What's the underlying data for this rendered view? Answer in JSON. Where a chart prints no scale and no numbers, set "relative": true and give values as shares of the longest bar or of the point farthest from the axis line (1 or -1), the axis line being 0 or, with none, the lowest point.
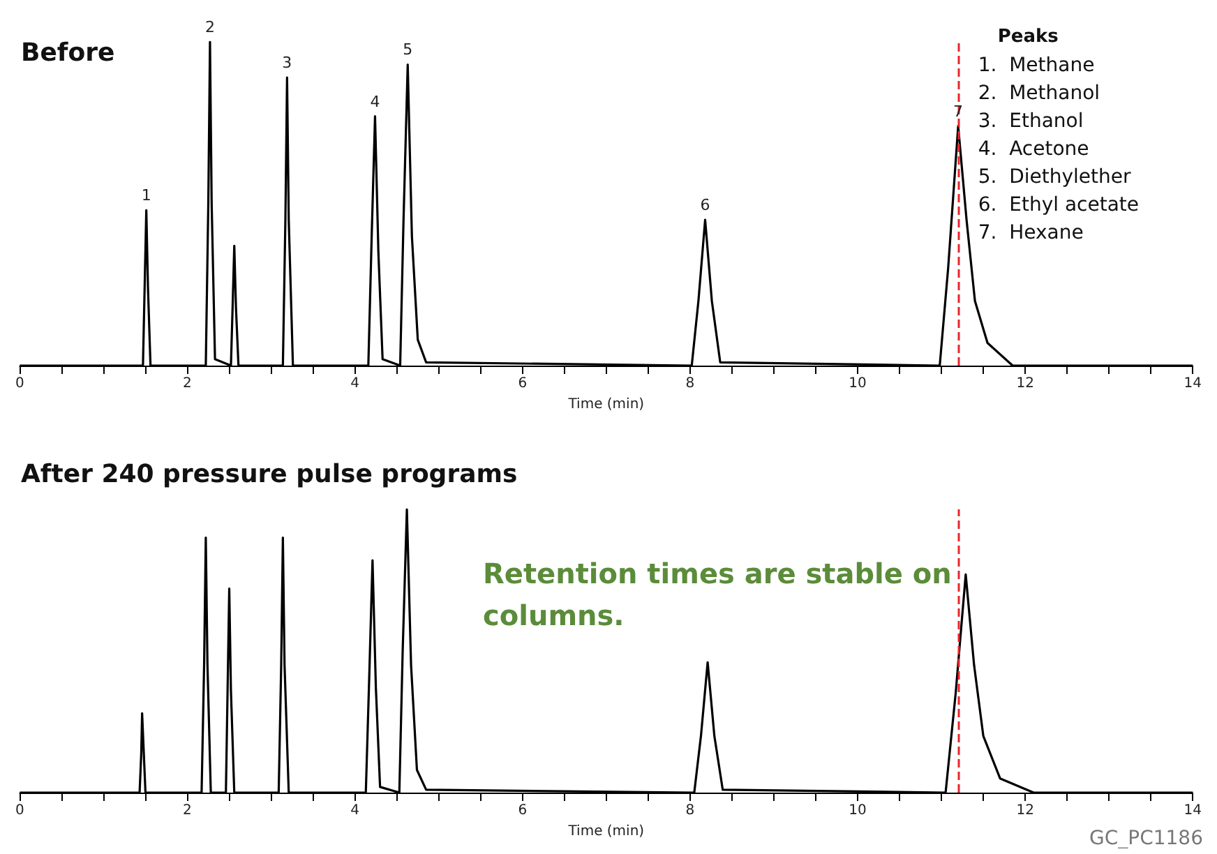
{
  "chart_data": [
    {
      "type": "line",
      "title": "Before",
      "xlabel": "Time (min)",
      "relative": true,
      "marker": "none",
      "tick_labels": "x",
      "xlim": [
        0,
        14
      ],
      "xticks": [
        0,
        {
          "value": 0.5,
          "label": null
        },
        {
          "value": 1,
          "label": null
        },
        {
          "value": 1.5,
          "label": null
        },
        2,
        {
          "value": 2.5,
          "label": null
        },
        {
          "value": 3,
          "label": null
        },
        {
          "value": 3.5,
          "label": null
        },
        4,
        {
          "value": 4.5,
          "label": null
        },
        {
          "value": 5,
          "label": null
        },
        {
          "value": 5.5,
          "label": null
        },
        6,
        {
          "value": 6.5,
          "label": null
        },
        {
          "value": 7,
          "label": null
        },
        {
          "value": 7.5,
          "label": null
        },
        8,
        {
          "value": 8.5,
          "label": null
        },
        {
          "value": 9,
          "label": null
        },
        {
          "value": 9.5,
          "label": null
        },
        10,
        {
          "value": 10.5,
          "label": null
        },
        {
          "value": 11,
          "label": null
        },
        {
          "value": 11.5,
          "label": null
        },
        12,
        {
          "value": 12.5,
          "label": null
        },
        {
          "value": 13,
          "label": null
        },
        {
          "value": 13.5,
          "label": null
        },
        14
      ],
      "x": [
        0,
        1.47,
        1.49,
        1.51,
        1.53,
        1.56,
        2.22,
        2.25,
        2.27,
        2.29,
        2.33,
        2.52,
        2.54,
        2.56,
        2.58,
        2.61,
        3.14,
        3.17,
        3.19,
        3.21,
        3.26,
        4.16,
        4.2,
        4.24,
        4.28,
        4.33,
        4.54,
        4.58,
        4.63,
        4.68,
        4.75,
        4.85,
        8.02,
        8.1,
        8.18,
        8.26,
        8.36,
        10.98,
        11.08,
        11.2,
        11.3,
        11.4,
        11.55,
        11.85,
        14
      ],
      "series": [
        {
          "color": "#000000",
          "values": [
            0,
            0,
            0.24,
            0.48,
            0.24,
            0,
            0,
            0.5,
            1.0,
            0.5,
            0.02,
            0,
            0.18,
            0.37,
            0.18,
            0,
            0,
            0.45,
            0.89,
            0.45,
            0,
            0,
            0.4,
            0.77,
            0.35,
            0.02,
            0,
            0.45,
            0.93,
            0.4,
            0.08,
            0.01,
            0,
            0.2,
            0.45,
            0.2,
            0.01,
            0,
            0.3,
            0.74,
            0.45,
            0.2,
            0.07,
            0,
            0
          ]
        }
      ],
      "ref_lines": [
        {
          "axis": "x",
          "value": 11.2,
          "label": null,
          "color": "#e8262a",
          "line_style": "dashed"
        }
      ],
      "annotations": [
        {
          "text": "1",
          "x": 1.51,
          "y": 0.48
        },
        {
          "text": "2",
          "x": 2.27,
          "y": 1.0
        },
        {
          "text": "3",
          "x": 3.19,
          "y": 0.89
        },
        {
          "text": "4",
          "x": 4.24,
          "y": 0.77
        },
        {
          "text": "5",
          "x": 4.63,
          "y": 0.93
        },
        {
          "text": "6",
          "x": 8.18,
          "y": 0.45
        },
        {
          "text": "7",
          "x": 11.2,
          "y": 0.74
        },
        "Peaks",
        "1.  Methane",
        "2.  Methanol",
        "3.  Ethanol",
        "4.  Acetone",
        "5.  Diethylether",
        "6.  Ethyl acetate",
        "7.  Hexane"
      ]
    },
    {
      "type": "line",
      "title": "After 240 pressure pulse programs",
      "xlabel": "Time (min)",
      "relative": true,
      "marker": "none",
      "tick_labels": "x",
      "xlim": [
        0,
        14
      ],
      "xticks": [
        0,
        {
          "value": 0.5,
          "label": null
        },
        {
          "value": 1,
          "label": null
        },
        {
          "value": 1.5,
          "label": null
        },
        2,
        {
          "value": 2.5,
          "label": null
        },
        {
          "value": 3,
          "label": null
        },
        {
          "value": 3.5,
          "label": null
        },
        4,
        {
          "value": 4.5,
          "label": null
        },
        {
          "value": 5,
          "label": null
        },
        {
          "value": 5.5,
          "label": null
        },
        6,
        {
          "value": 6.5,
          "label": null
        },
        {
          "value": 7,
          "label": null
        },
        {
          "value": 7.5,
          "label": null
        },
        8,
        {
          "value": 8.5,
          "label": null
        },
        {
          "value": 9,
          "label": null
        },
        {
          "value": 9.5,
          "label": null
        },
        10,
        {
          "value": 10.5,
          "label": null
        },
        {
          "value": 11,
          "label": null
        },
        {
          "value": 11.5,
          "label": null
        },
        12,
        {
          "value": 12.5,
          "label": null
        },
        {
          "value": 13,
          "label": null
        },
        {
          "value": 13.5,
          "label": null
        },
        14
      ],
      "x": [
        0,
        1.43,
        1.45,
        1.46,
        1.48,
        1.5,
        2.17,
        2.2,
        2.22,
        2.24,
        2.28,
        2.46,
        2.48,
        2.5,
        2.52,
        2.56,
        3.09,
        3.12,
        3.14,
        3.16,
        3.21,
        4.13,
        4.17,
        4.21,
        4.25,
        4.3,
        4.53,
        4.57,
        4.62,
        4.67,
        4.74,
        4.85,
        8.05,
        8.13,
        8.21,
        8.29,
        8.39,
        11.05,
        11.17,
        11.29,
        11.39,
        11.5,
        11.7,
        12.1,
        14
      ],
      "series": [
        {
          "color": "#000000",
          "values": [
            0,
            0,
            0.14,
            0.28,
            0.14,
            0,
            0,
            0.45,
            0.9,
            0.45,
            0,
            0,
            0.36,
            0.72,
            0.36,
            0,
            0,
            0.45,
            0.9,
            0.45,
            0,
            0,
            0.4,
            0.82,
            0.37,
            0.02,
            0,
            0.5,
            1.0,
            0.45,
            0.08,
            0.01,
            0,
            0.2,
            0.46,
            0.2,
            0.01,
            0,
            0.35,
            0.77,
            0.45,
            0.2,
            0.05,
            0,
            0
          ]
        }
      ],
      "ref_lines": [
        {
          "axis": "x",
          "value": 11.2,
          "label": null,
          "color": "#e8262a",
          "line_style": "dashed"
        }
      ],
      "annotations": [
        "Retention times are stable on columns.",
        "GC_PC1186"
      ]
    }
  ]
}
